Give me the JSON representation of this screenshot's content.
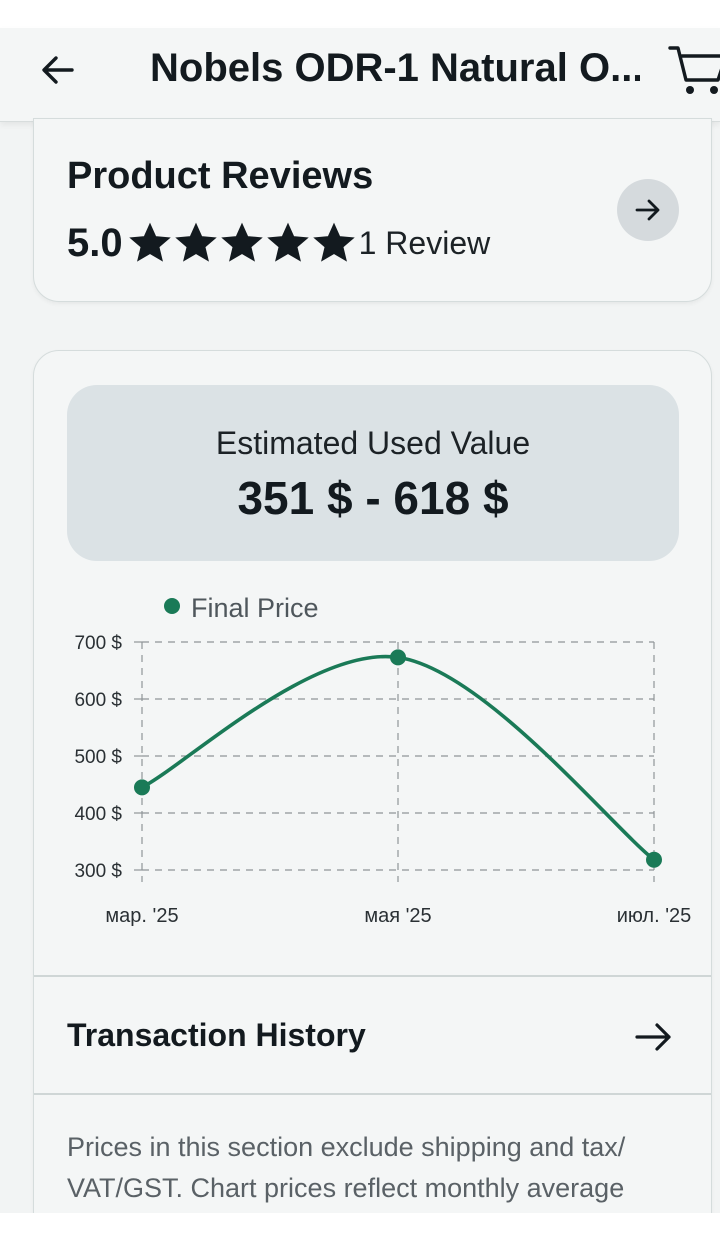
{
  "header": {
    "title": "Nobels ODR-1 Natural O...",
    "back_icon": "arrow-left-icon",
    "cart_icon": "cart-icon"
  },
  "reviews": {
    "title": "Product Reviews",
    "rating": "5.0",
    "stars_filled": 5,
    "stars_total": 5,
    "count_label": "1 Review",
    "arrow_icon": "arrow-right-icon"
  },
  "valuation": {
    "label": "Estimated Used Value",
    "range": "351 $ - 618 $"
  },
  "chart_data": {
    "type": "line",
    "legend": [
      "Final Price"
    ],
    "legend_position": "top-left",
    "categories": [
      "мар. '25",
      "мая '25",
      "июл. '25"
    ],
    "series": [
      {
        "name": "Final Price",
        "values": [
          445,
          673,
          318
        ]
      }
    ],
    "y_ticks": [
      {
        "value": 700,
        "label": "700 $"
      },
      {
        "value": 600,
        "label": "600 $"
      },
      {
        "value": 500,
        "label": "500 $"
      },
      {
        "value": 400,
        "label": "400 $"
      },
      {
        "value": 300,
        "label": "300 $"
      }
    ],
    "ylim": [
      300,
      700
    ],
    "grid": true,
    "color": "#1a7a57"
  },
  "transactions": {
    "title": "Transaction History",
    "arrow_icon": "arrow-right-icon"
  },
  "note": {
    "text": "Prices in this section exclude shipping and tax/ VAT/GST. Chart prices reflect monthly average"
  },
  "colors": {
    "accent": "#1a7a57",
    "background": "#f2f4f4",
    "estimate_box": "#dbe2e5"
  }
}
